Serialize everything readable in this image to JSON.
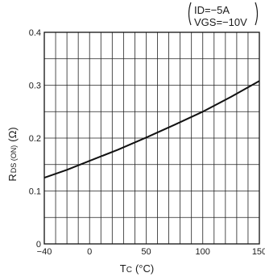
{
  "chart_data": {
    "type": "line",
    "conditions": {
      "line1": "ID=−5A",
      "line2": "VGS=−10V"
    },
    "xlabel": {
      "main": "T",
      "sub": "C",
      "unit": "(°C)"
    },
    "ylabel": {
      "main": "R",
      "sub": "DS (ON)",
      "unit": "(Ω)"
    },
    "xlim": [
      -40,
      150
    ],
    "ylim": [
      0,
      0.4
    ],
    "xticks": [
      -40,
      0,
      50,
      100,
      150
    ],
    "xtick_labels": [
      "−40",
      "0",
      "50",
      "100",
      "150"
    ],
    "yticks": [
      0,
      0.1,
      0.2,
      0.3,
      0.4
    ],
    "ytick_labels": [
      "0",
      "0.1",
      "0.2",
      "0.3",
      "0.4"
    ],
    "x_grid_step": 10,
    "y_grid_step": 0.05,
    "grid": true,
    "series": [
      {
        "x": [
          -40,
          -20,
          0,
          25,
          50,
          75,
          100,
          125,
          150
        ],
        "y": [
          0.125,
          0.14,
          0.157,
          0.178,
          0.201,
          0.225,
          0.25,
          0.278,
          0.308
        ]
      }
    ]
  }
}
